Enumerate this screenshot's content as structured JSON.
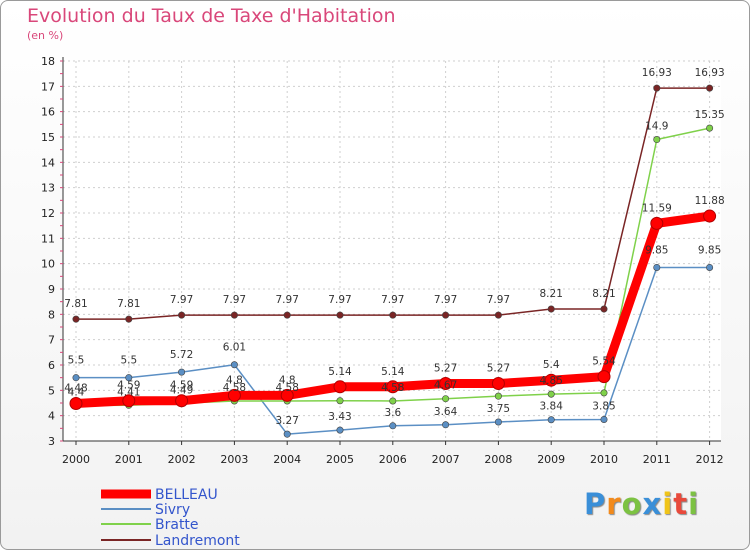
{
  "chart_data": {
    "type": "line",
    "title": "Evolution du Taux de Taxe d'Habitation",
    "ylabel": "(en %)",
    "x": [
      "2000",
      "2001",
      "2002",
      "2003",
      "2004",
      "2005",
      "2006",
      "2007",
      "2008",
      "2009",
      "2010",
      "2011",
      "2012"
    ],
    "yticks": [
      "3",
      "4",
      "5",
      "6",
      "7",
      "8",
      "9",
      "10",
      "11",
      "12",
      "13",
      "14",
      "15",
      "16",
      "17",
      "18"
    ],
    "ylim": [
      3,
      18
    ],
    "grid": true,
    "series": [
      {
        "name": "BELLEAU",
        "color": "#ff0000",
        "values": [
          4.48,
          4.59,
          4.59,
          4.8,
          4.8,
          5.14,
          5.14,
          5.27,
          5.27,
          5.4,
          5.54,
          11.59,
          11.88
        ],
        "labels": [
          "4.48",
          "4.59",
          "4.59",
          "4.8",
          "4.8",
          "5.14",
          "5.14",
          "5.27",
          "5.27",
          "5.4",
          "5.54",
          "11.59",
          "11.88"
        ]
      },
      {
        "name": "Sivry",
        "color": "#5b8fc4",
        "values": [
          5.5,
          5.5,
          5.72,
          6.01,
          3.27,
          3.43,
          3.6,
          3.64,
          3.75,
          3.84,
          3.85,
          9.85,
          9.85
        ],
        "labels": [
          "5.5",
          "5.5",
          "5.72",
          "6.01",
          "3.27",
          "3.43",
          "3.6",
          "3.64",
          "3.75",
          "3.84",
          "3.85",
          "9.85",
          "9.85"
        ]
      },
      {
        "name": "Bratte",
        "color": "#7fd14a",
        "values": [
          4.4,
          4.41,
          4.49,
          4.58,
          4.58,
          4.59,
          4.58,
          4.67,
          4.77,
          4.85,
          4.9,
          14.9,
          15.35
        ],
        "labels": [
          "4.4",
          "4.41",
          "4.49",
          "4.58",
          "4.58",
          "",
          "4.58",
          "4.67",
          "",
          "4.85",
          "",
          "14.9",
          "15.35"
        ]
      },
      {
        "name": "Landremont",
        "color": "#7a2525",
        "values": [
          7.81,
          7.81,
          7.97,
          7.97,
          7.97,
          7.97,
          7.97,
          7.97,
          7.97,
          8.21,
          8.21,
          16.93,
          16.93
        ],
        "labels": [
          "7.81",
          "7.81",
          "7.97",
          "7.97",
          "7.97",
          "7.97",
          "7.97",
          "7.97",
          "7.97",
          "8.21",
          "8.21",
          "16.93",
          "16.93"
        ]
      }
    ]
  },
  "logo": {
    "letters": [
      "P",
      "r",
      "o",
      "x",
      "i",
      "t",
      "i"
    ],
    "colors": [
      "#3a8fd8",
      "#f28a1c",
      "#7cc242",
      "#3a8fd8",
      "#f0c419",
      "#e84a3c",
      "#7cc242"
    ]
  }
}
